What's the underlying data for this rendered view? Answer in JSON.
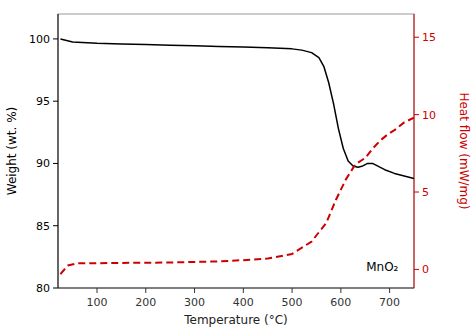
{
  "chart_data": {
    "type": "line",
    "xlabel": "Temperature (°C)",
    "ylabel": "Weight (wt. %)",
    "y2label": "Heat flow (mW/mg)",
    "xlim": [
      20,
      750
    ],
    "xticks": [
      100,
      200,
      300,
      400,
      500,
      600,
      700
    ],
    "ylim": [
      80,
      102
    ],
    "yticks": [
      80,
      85,
      90,
      95,
      100
    ],
    "y2lim": [
      -1.2,
      16.5
    ],
    "y2ticks": [
      0,
      5,
      10,
      15
    ],
    "grid": false,
    "series": [
      {
        "type": "line",
        "color": "#000000",
        "line_style": "solid",
        "x": [
          25,
          50,
          100,
          150,
          200,
          250,
          300,
          350,
          400,
          450,
          500,
          520,
          540,
          555,
          565,
          575,
          585,
          595,
          605,
          615,
          625,
          635,
          645,
          655,
          665,
          675,
          690,
          710,
          730,
          750
        ],
        "values": [
          100.0,
          99.75,
          99.65,
          99.6,
          99.55,
          99.5,
          99.45,
          99.4,
          99.35,
          99.3,
          99.2,
          99.1,
          98.9,
          98.5,
          97.8,
          96.5,
          94.8,
          92.8,
          91.2,
          90.2,
          89.8,
          89.7,
          89.8,
          90.0,
          90.0,
          89.8,
          89.5,
          89.2,
          89.0,
          88.8
        ]
      },
      {
        "type": "line",
        "color": "#cc0000",
        "line_style": "dashed",
        "axis": "y2",
        "x": [
          25,
          40,
          60,
          100,
          150,
          200,
          250,
          300,
          350,
          400,
          450,
          500,
          540,
          570,
          590,
          610,
          630,
          650,
          665,
          680,
          695,
          710,
          730,
          750
        ],
        "values": [
          -0.3,
          0.25,
          0.4,
          0.4,
          0.42,
          0.43,
          0.45,
          0.48,
          0.52,
          0.6,
          0.7,
          1.0,
          1.8,
          3.0,
          4.5,
          5.8,
          6.8,
          7.2,
          7.8,
          8.3,
          8.7,
          9.0,
          9.5,
          9.8
        ]
      }
    ],
    "annotations": [
      {
        "text": "MnO₂",
        "x": 685,
        "y": 81.2
      }
    ]
  }
}
